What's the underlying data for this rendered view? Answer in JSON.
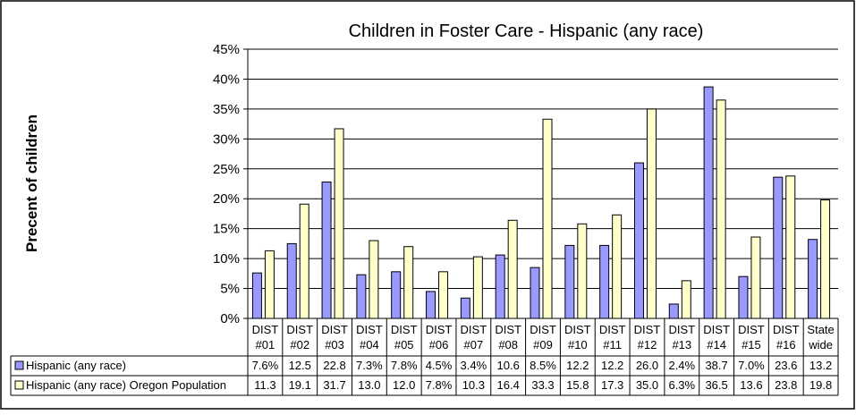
{
  "chart_data": {
    "type": "bar",
    "title": "Children in Foster Care - Hispanic (any race)",
    "ylabel": "Precent of children",
    "xlabel": "",
    "ylim": [
      0,
      45
    ],
    "yticks": [
      "0%",
      "5%",
      "10%",
      "15%",
      "20%",
      "25%",
      "30%",
      "35%",
      "40%",
      "45%"
    ],
    "grid": true,
    "categories": [
      [
        "DIST",
        "#01"
      ],
      [
        "DIST",
        "#02"
      ],
      [
        "DIST",
        "#03"
      ],
      [
        "DIST",
        "#04"
      ],
      [
        "DIST",
        "#05"
      ],
      [
        "DIST",
        "#06"
      ],
      [
        "DIST",
        "#07"
      ],
      [
        "DIST",
        "#08"
      ],
      [
        "DIST",
        "#09"
      ],
      [
        "DIST",
        "#10"
      ],
      [
        "DIST",
        "#11"
      ],
      [
        "DIST",
        "#12"
      ],
      [
        "DIST",
        "#13"
      ],
      [
        "DIST",
        "#14"
      ],
      [
        "DIST",
        "#15"
      ],
      [
        "DIST",
        "#16"
      ],
      [
        "State",
        "wide"
      ]
    ],
    "series": [
      {
        "name": "Hispanic (any race)",
        "color": "#9999ff",
        "values": [
          7.6,
          12.5,
          22.8,
          7.3,
          7.8,
          4.5,
          3.4,
          10.6,
          8.5,
          12.2,
          12.2,
          26.0,
          2.4,
          38.7,
          7.0,
          23.6,
          13.2
        ],
        "labels": [
          "7.6%",
          "12.5",
          "22.8",
          "7.3%",
          "7.8%",
          "4.5%",
          "3.4%",
          "10.6",
          "8.5%",
          "12.2",
          "12.2",
          "26.0",
          "2.4%",
          "38.7",
          "7.0%",
          "23.6",
          "13.2"
        ]
      },
      {
        "name": "Hispanic (any race) Oregon Population",
        "color": "#ffffcc",
        "values": [
          11.3,
          19.1,
          31.7,
          13.0,
          12.0,
          7.8,
          10.3,
          16.4,
          33.3,
          15.8,
          17.3,
          35.0,
          6.3,
          36.5,
          13.6,
          23.8,
          19.8
        ],
        "labels": [
          "11.3",
          "19.1",
          "31.7",
          "13.0",
          "12.0",
          "7.8%",
          "10.3",
          "16.4",
          "33.3",
          "15.8",
          "17.3",
          "35.0",
          "6.3%",
          "36.5",
          "13.6",
          "23.8",
          "19.8"
        ]
      }
    ]
  }
}
